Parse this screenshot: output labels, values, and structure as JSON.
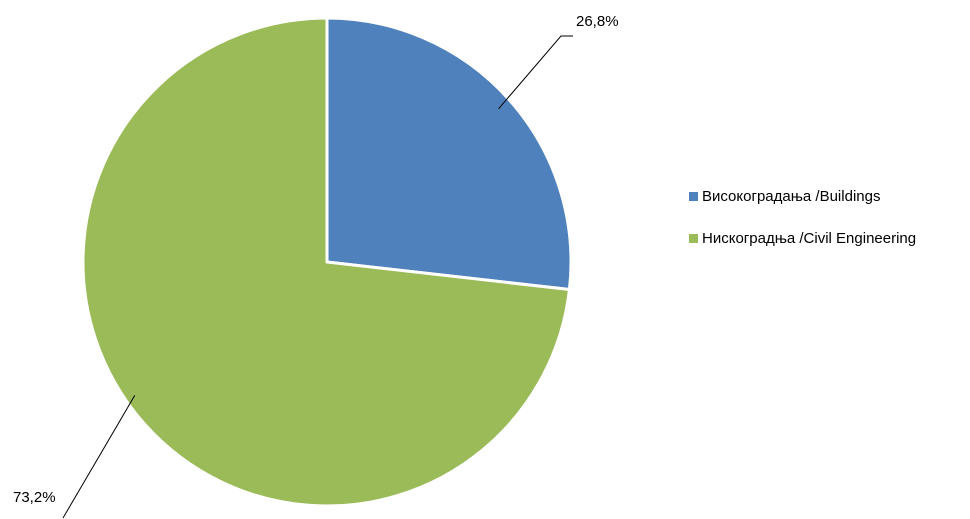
{
  "chart_data": {
    "type": "pie",
    "categories": [
      "Високоградања /Buildings",
      "Нискоградња /Civil Engineering"
    ],
    "values": [
      26.8,
      73.2
    ],
    "data_labels": [
      "26,8%",
      "73,2%"
    ],
    "colors": [
      "#4f81bd",
      "#9bbb59"
    ],
    "start_angle_deg": 0,
    "direction": "clockwise",
    "legend_position": "right"
  }
}
